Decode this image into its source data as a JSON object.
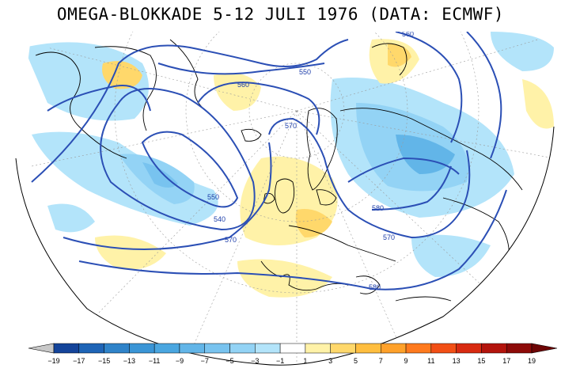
{
  "title": "OMEGA-BLOKKADE 5-12 JULI 1976 (DATA: ECMWF)",
  "colorbar": {
    "labels": [
      "−19",
      "−17",
      "−15",
      "−13",
      "−11",
      "−9",
      "−7",
      "−5",
      "−3",
      "−1",
      "1",
      "3",
      "5",
      "7",
      "9",
      "11",
      "13",
      "15",
      "17",
      "19"
    ],
    "colors": [
      "#14449a",
      "#1e64b6",
      "#2f83c9",
      "#3a95d6",
      "#4aa6e0",
      "#62b5e8",
      "#78c3ef",
      "#93d3f5",
      "#b3e4fa",
      "#ffffff",
      "#fff2a8",
      "#ffd86b",
      "#ffbe3f",
      "#ffa12a",
      "#ff7a1e",
      "#f24f15",
      "#d82a10",
      "#b3140c",
      "#8d0a08"
    ],
    "under_color": "#c8c8c8",
    "over_color": "#6e0606"
  },
  "contours": {
    "color": "#2b4fb5",
    "labels": [
      "560",
      "550",
      "560",
      "570",
      "550",
      "540",
      "580",
      "570",
      "570",
      "580"
    ]
  }
}
